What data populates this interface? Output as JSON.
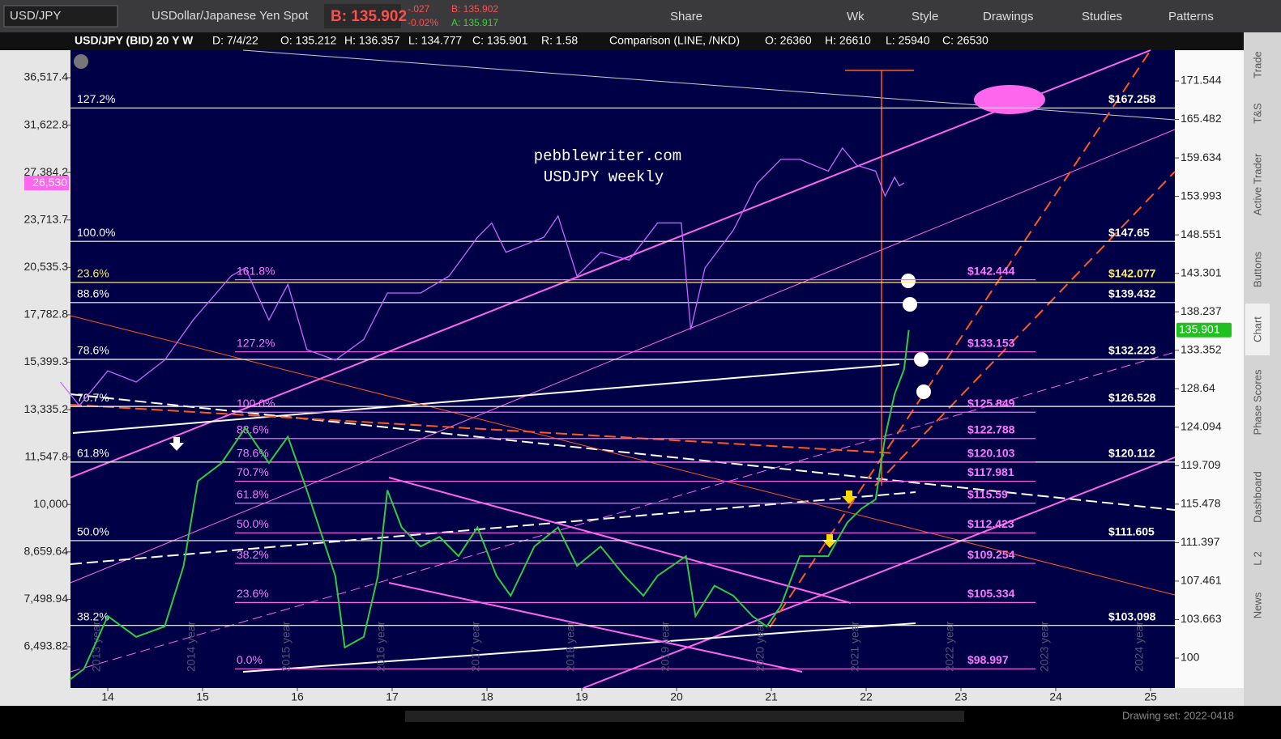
{
  "toolbar": {
    "symbol": "USD/JPY",
    "description": "USDollar/Japanese Yen Spot",
    "bid": "B: 135.902",
    "change": "-.027",
    "change_pct": "-0.02%",
    "bid_small": "B: 135.902",
    "ask_small": "A: 135.917",
    "buttons": [
      "Share",
      "Wk",
      "Style",
      "Drawings",
      "Studies",
      "Patterns"
    ]
  },
  "info_bar": {
    "items": [
      "USD/JPY (BID) 20 Y W",
      "D: 7/4/22",
      "O: 135.212",
      "H: 136.357",
      "L: 134.777",
      "C: 135.901",
      "R: 1.58"
    ],
    "comparison": [
      "Comparison (LINE, /NKD)",
      "O: 26360",
      "H: 26610",
      "L: 25940",
      "C: 26530"
    ]
  },
  "chart": {
    "watermark": [
      "pebblewriter.com",
      "USDJPY weekly"
    ],
    "right_ticks": [
      171.544,
      165.482,
      159.634,
      153.993,
      148.551,
      143.301,
      138.237,
      133.352,
      128.64,
      124.094,
      119.709,
      115.478,
      111.397,
      107.461,
      103.663,
      100
    ],
    "left_ticks": [
      {
        "value": 36517.4,
        "label": "36,517.4"
      },
      {
        "value": 31622.8,
        "label": "31,622.8"
      },
      {
        "value": 27384.2,
        "label": "27,384.2"
      },
      {
        "value": 23713.7,
        "label": "23,713.7"
      },
      {
        "value": 20535.3,
        "label": "20,535.3"
      },
      {
        "value": 17782.8,
        "label": "17,782.8"
      },
      {
        "value": 15399.3,
        "label": "15,399.3"
      },
      {
        "value": 13335.2,
        "label": "13,335.2"
      },
      {
        "value": 11547.8,
        "label": "11,547.8"
      },
      {
        "value": 10000,
        "label": "10,000"
      },
      {
        "value": 8659.64,
        "label": "8,659.64"
      },
      {
        "value": 7498.94,
        "label": "7,498.94"
      },
      {
        "value": 6493.82,
        "label": "6,493.82"
      }
    ],
    "x_ticks": [
      14,
      15,
      16,
      17,
      18,
      19,
      20,
      21,
      22,
      23,
      24,
      25
    ],
    "year_labels": [
      "2013 year",
      "2014 year",
      "2015 year",
      "2016 year",
      "2017 year",
      "2018 year",
      "2019 year",
      "2020 year",
      "2021 year",
      "2022 year",
      "2023 year",
      "2024 year"
    ],
    "white_levels": [
      {
        "fib": "127.2%",
        "label": "$167.258",
        "value": 167.258
      },
      {
        "fib": "100.0%",
        "label": "$147.65",
        "value": 147.65
      },
      {
        "fib": "23.6%",
        "label": "$142.077",
        "value": 142.077
      },
      {
        "fib": "88.6%",
        "label": "$139.432",
        "value": 139.432
      },
      {
        "fib": "78.6%",
        "label": "$132.223",
        "value": 132.223
      },
      {
        "fib": "70.7%",
        "label": "$126.528",
        "value": 126.528
      },
      {
        "fib": "61.8%",
        "label": "$120.112",
        "value": 120.112
      },
      {
        "fib": "50.0%",
        "label": "$111.605",
        "value": 111.605
      },
      {
        "fib": "38.2%",
        "label": "$103.098",
        "value": 103.098
      }
    ],
    "pink_levels": [
      {
        "fib": "161.8%",
        "label": "$142.444",
        "value": 142.444
      },
      {
        "fib": "127.2%",
        "label": "$133.153",
        "value": 133.153
      },
      {
        "fib": "100.0%",
        "label": "$125.849",
        "value": 125.849
      },
      {
        "fib": "88.6%",
        "label": "$122.788",
        "value": 122.788
      },
      {
        "fib": "78.6%",
        "label": "$120.103",
        "value": 120.103
      },
      {
        "fib": "70.7%",
        "label": "$117.981",
        "value": 117.981
      },
      {
        "fib": "61.8%",
        "label": "$115.59",
        "value": 115.59
      },
      {
        "fib": "50.0%",
        "label": "$112.423",
        "value": 112.423
      },
      {
        "fib": "38.2%",
        "label": "$109.254",
        "value": 109.254
      },
      {
        "fib": "23.6%",
        "label": "$105.334",
        "value": 105.334
      },
      {
        "fib": "0.0%",
        "label": "$98.997",
        "value": 98.997
      }
    ],
    "price_series": {
      "x": [
        13.6,
        13.75,
        14.0,
        14.3,
        14.6,
        14.8,
        14.95,
        15.2,
        15.45,
        15.7,
        15.9,
        16.1,
        16.4,
        16.5,
        16.7,
        16.85,
        16.95,
        17.1,
        17.3,
        17.5,
        17.7,
        17.9,
        18.1,
        18.25,
        18.5,
        18.75,
        18.95,
        19.2,
        19.45,
        19.65,
        19.8,
        19.95,
        20.1,
        20.2,
        20.4,
        20.6,
        20.8,
        20.95,
        21.1,
        21.3,
        21.6,
        21.8,
        21.95,
        22.1,
        22.2,
        22.3,
        22.4,
        22.45
      ],
      "values": [
        98,
        99,
        104,
        102,
        103,
        109,
        118,
        120,
        124,
        120,
        123,
        117,
        108,
        101,
        102,
        108,
        117,
        113,
        111,
        112,
        110,
        113,
        108,
        106,
        111,
        113,
        109,
        111,
        108,
        106,
        108,
        109,
        110,
        104,
        107,
        106,
        104,
        103,
        105,
        110,
        110,
        113.5,
        115,
        116,
        123,
        128,
        131,
        135.9
      ]
    },
    "comparison_series": {
      "x": [
        13.5,
        13.7,
        14.0,
        14.3,
        14.6,
        14.9,
        15.3,
        15.45,
        15.7,
        15.9,
        16.1,
        16.4,
        16.7,
        16.95,
        17.3,
        17.6,
        17.9,
        18.05,
        18.2,
        18.6,
        18.75,
        18.95,
        19.2,
        19.5,
        19.8,
        20.05,
        20.15,
        20.3,
        20.6,
        20.85,
        21.1,
        21.3,
        21.6,
        21.75,
        21.9,
        22.1,
        22.2,
        22.3,
        22.35,
        22.4
      ],
      "values": [
        14500,
        13500,
        15000,
        14500,
        15500,
        17500,
        20000,
        20500,
        17500,
        19500,
        16000,
        15500,
        16500,
        19000,
        19000,
        20000,
        22500,
        23500,
        21500,
        22500,
        24000,
        20000,
        21500,
        21000,
        23500,
        23500,
        17000,
        20500,
        23000,
        26500,
        28500,
        28500,
        27500,
        29500,
        28000,
        27500,
        25500,
        27000,
        26300,
        26530
      ]
    },
    "price_label": "135.901",
    "comparison_label": "26,530"
  },
  "sidebar": [
    "Trade",
    "T&S",
    "Active Trader",
    "Buttons",
    "Chart",
    "Phase Scores",
    "Dashboard",
    "L 2",
    "News"
  ],
  "footer": {
    "drawing_set": "Drawing set: 2022-0418"
  }
}
